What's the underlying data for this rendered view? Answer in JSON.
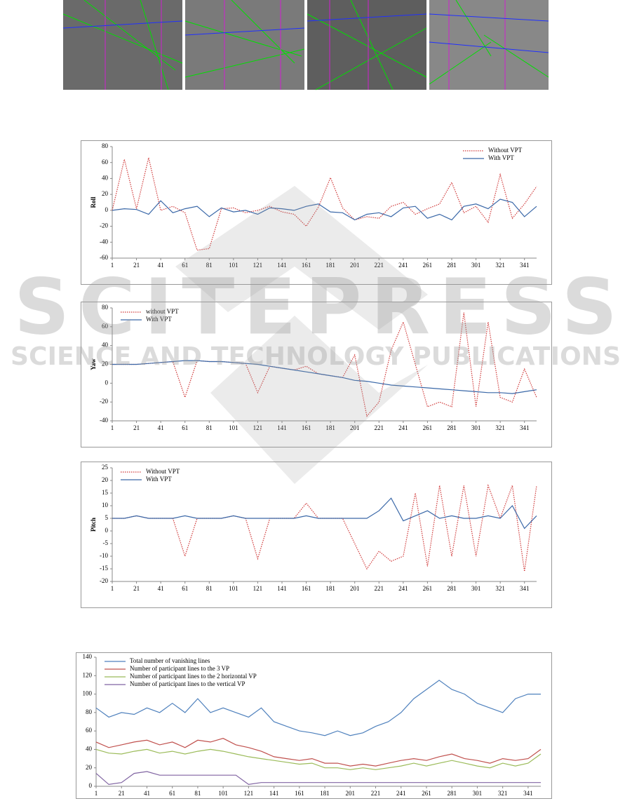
{
  "watermark": {
    "title": "SCITEPRESS",
    "subtitle": "SCIENCE AND TECHNOLOGY PUBLICATIONS"
  },
  "chart_data": [
    {
      "type": "line",
      "y_label": "Roll",
      "legend": "top-right",
      "x": [
        1,
        11,
        21,
        31,
        41,
        51,
        61,
        71,
        81,
        91,
        101,
        111,
        121,
        131,
        141,
        151,
        161,
        171,
        181,
        191,
        201,
        211,
        221,
        231,
        241,
        251,
        261,
        271,
        281,
        291,
        301,
        311,
        321,
        331,
        341,
        351
      ],
      "xlim": [
        1,
        351
      ],
      "xticks": [
        1,
        21,
        41,
        61,
        81,
        101,
        121,
        141,
        161,
        181,
        201,
        221,
        241,
        261,
        281,
        301,
        321,
        341
      ],
      "ylim": [
        -60,
        80
      ],
      "yticks": [
        -60,
        -40,
        -20,
        0,
        20,
        40,
        60,
        80
      ],
      "series": [
        {
          "name": "Without VPT",
          "color": "#d03a3a",
          "style": "dotted",
          "values": [
            0,
            64,
            2,
            66,
            0,
            5,
            -3,
            -50,
            -48,
            2,
            3,
            -3,
            0,
            5,
            -2,
            -5,
            -20,
            4,
            41,
            3,
            -12,
            -8,
            -10,
            5,
            10,
            -5,
            2,
            8,
            35,
            -3,
            5,
            -15,
            45,
            -10,
            8,
            30
          ]
        },
        {
          "name": "With VPT",
          "color": "#3a68a8",
          "style": "solid",
          "values": [
            0,
            2,
            1,
            -5,
            12,
            -3,
            2,
            5,
            -8,
            3,
            -2,
            0,
            -5,
            3,
            2,
            0,
            5,
            8,
            -2,
            -3,
            -12,
            -5,
            -3,
            -8,
            3,
            5,
            -10,
            -5,
            -12,
            5,
            8,
            2,
            14,
            10,
            -8,
            5
          ]
        }
      ]
    },
    {
      "type": "line",
      "y_label": "Yaw",
      "legend": "top-left",
      "x": [
        1,
        11,
        21,
        31,
        41,
        51,
        61,
        71,
        81,
        91,
        101,
        111,
        121,
        131,
        141,
        151,
        161,
        171,
        181,
        191,
        201,
        211,
        221,
        231,
        241,
        251,
        261,
        271,
        281,
        291,
        301,
        311,
        321,
        331,
        341,
        351
      ],
      "xlim": [
        1,
        351
      ],
      "xticks": [
        1,
        21,
        41,
        61,
        81,
        101,
        121,
        141,
        161,
        181,
        201,
        221,
        241,
        261,
        281,
        301,
        321,
        341
      ],
      "ylim": [
        -40,
        80
      ],
      "yticks": [
        -40,
        -20,
        0,
        20,
        40,
        60,
        80
      ],
      "series": [
        {
          "name": "without VPT",
          "color": "#d03a3a",
          "style": "dotted",
          "values": [
            20,
            20,
            20,
            21,
            22,
            23,
            -15,
            24,
            23,
            23,
            22,
            21,
            -10,
            18,
            16,
            14,
            18,
            10,
            8,
            6,
            30,
            -35,
            -20,
            35,
            65,
            20,
            -25,
            -20,
            -25,
            75,
            -25,
            65,
            -15,
            -20,
            15,
            -15
          ]
        },
        {
          "name": "With VPT",
          "color": "#3a68a8",
          "style": "solid",
          "values": [
            20,
            20,
            20,
            21,
            22,
            23,
            24,
            24,
            23,
            23,
            22,
            21,
            20,
            18,
            16,
            14,
            12,
            10,
            8,
            6,
            3,
            2,
            0,
            -2,
            -3,
            -4,
            -5,
            -6,
            -7,
            -8,
            -9,
            -10,
            -10,
            -11,
            -9,
            -7
          ]
        }
      ]
    },
    {
      "type": "line",
      "y_label": "Pitch",
      "legend": "top-left",
      "x": [
        1,
        11,
        21,
        31,
        41,
        51,
        61,
        71,
        81,
        91,
        101,
        111,
        121,
        131,
        141,
        151,
        161,
        171,
        181,
        191,
        201,
        211,
        221,
        231,
        241,
        251,
        261,
        271,
        281,
        291,
        301,
        311,
        321,
        331,
        341,
        351
      ],
      "xlim": [
        1,
        351
      ],
      "xticks": [
        1,
        21,
        41,
        61,
        81,
        101,
        121,
        141,
        161,
        181,
        201,
        221,
        241,
        261,
        281,
        301,
        321,
        341
      ],
      "ylim": [
        -20,
        25
      ],
      "yticks": [
        -20,
        -15,
        -10,
        -5,
        0,
        5,
        10,
        15,
        20,
        25
      ],
      "series": [
        {
          "name": "Without VPT",
          "color": "#d03a3a",
          "style": "dotted",
          "values": [
            5,
            5,
            6,
            5,
            5,
            5,
            -10,
            5,
            5,
            5,
            6,
            5,
            -11,
            5,
            5,
            5,
            11,
            5,
            5,
            5,
            -5,
            -15,
            -8,
            -12,
            -10,
            15,
            -14,
            18,
            -10,
            18,
            -10,
            18,
            5,
            18,
            -16,
            18
          ]
        },
        {
          "name": "With VPT",
          "color": "#3a68a8",
          "style": "solid",
          "values": [
            5,
            5,
            6,
            5,
            5,
            5,
            6,
            5,
            5,
            5,
            6,
            5,
            5,
            5,
            5,
            5,
            6,
            5,
            5,
            5,
            5,
            5,
            8,
            13,
            4,
            6,
            8,
            5,
            6,
            5,
            5,
            6,
            5,
            10,
            1,
            6
          ]
        }
      ]
    },
    {
      "type": "line",
      "legend": "top-left",
      "x": [
        1,
        11,
        21,
        31,
        41,
        51,
        61,
        71,
        81,
        91,
        101,
        111,
        121,
        131,
        141,
        151,
        161,
        171,
        181,
        191,
        201,
        211,
        221,
        231,
        241,
        251,
        261,
        271,
        281,
        291,
        301,
        311,
        321,
        331,
        341,
        351
      ],
      "xlim": [
        1,
        351
      ],
      "xticks": [
        1,
        21,
        41,
        61,
        81,
        101,
        121,
        141,
        161,
        181,
        201,
        221,
        241,
        261,
        281,
        301,
        321,
        341
      ],
      "ylim": [
        0,
        140
      ],
      "yticks": [
        0,
        20,
        40,
        60,
        80,
        100,
        120,
        140
      ],
      "series": [
        {
          "name": "Total number of vanishing lines",
          "color": "#4f81bd",
          "style": "solid",
          "values": [
            85,
            75,
            80,
            78,
            85,
            80,
            90,
            80,
            95,
            80,
            85,
            80,
            75,
            85,
            70,
            65,
            60,
            58,
            55,
            60,
            55,
            58,
            65,
            70,
            80,
            95,
            105,
            115,
            105,
            100,
            90,
            85,
            80,
            95,
            100,
            100
          ]
        },
        {
          "name": "Number of participant lines to the 3 VP",
          "color": "#c0504d",
          "style": "solid",
          "values": [
            48,
            42,
            45,
            48,
            50,
            45,
            48,
            42,
            50,
            48,
            52,
            45,
            42,
            38,
            32,
            30,
            28,
            30,
            25,
            25,
            22,
            24,
            22,
            25,
            28,
            30,
            28,
            32,
            35,
            30,
            28,
            25,
            30,
            28,
            30,
            40
          ]
        },
        {
          "name": "Number of participant lines to the 2 horizontal  VP",
          "color": "#9bbb59",
          "style": "solid",
          "values": [
            40,
            36,
            35,
            38,
            40,
            36,
            38,
            35,
            38,
            40,
            38,
            35,
            32,
            30,
            28,
            26,
            24,
            25,
            20,
            20,
            18,
            20,
            18,
            20,
            22,
            25,
            22,
            25,
            28,
            25,
            22,
            20,
            25,
            22,
            25,
            35
          ]
        },
        {
          "name": "Number of participant lines to the vertical VP",
          "color": "#8064a2",
          "style": "solid",
          "values": [
            14,
            2,
            4,
            14,
            16,
            12,
            12,
            12,
            12,
            12,
            12,
            12,
            2,
            4,
            4,
            4,
            4,
            4,
            4,
            4,
            4,
            4,
            4,
            4,
            4,
            4,
            4,
            4,
            4,
            4,
            4,
            4,
            4,
            4,
            4,
            4
          ]
        }
      ]
    }
  ]
}
